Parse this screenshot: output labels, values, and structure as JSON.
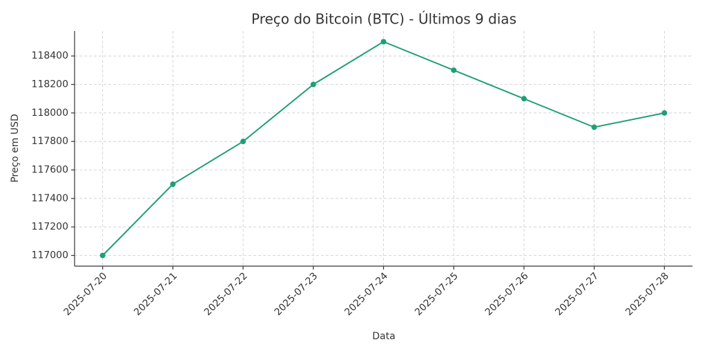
{
  "chart_data": {
    "type": "line",
    "title": "Preço do Bitcoin (BTC) - Últimos 9 dias",
    "x_label": "Data",
    "y_label": "Preço em USD",
    "categories": [
      "2025-07-20",
      "2025-07-21",
      "2025-07-22",
      "2025-07-23",
      "2025-07-24",
      "2025-07-25",
      "2025-07-26",
      "2025-07-27",
      "2025-07-28"
    ],
    "values": [
      117000,
      117500,
      117800,
      118200,
      118500,
      118300,
      118100,
      117900,
      118000
    ],
    "color": "#1f9e78",
    "ylim": [
      116925,
      118575
    ],
    "yticks": [
      117000,
      117200,
      117400,
      117600,
      117800,
      118000,
      118200,
      118400
    ],
    "grid": true
  }
}
